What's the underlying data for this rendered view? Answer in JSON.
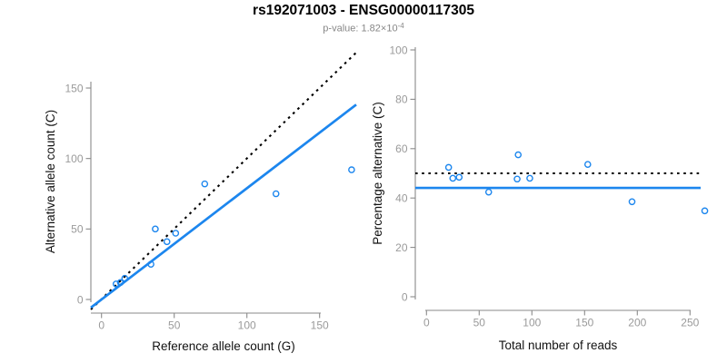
{
  "header": {
    "title": "rs192071003 - ENSG00000117305",
    "subtitle_prefix": "p-value: 1.82×10",
    "subtitle_exponent": "-4"
  },
  "colors": {
    "accent_blue": "#1C86EE",
    "reference_black": "#000000",
    "axis_gray": "#8a8a8a",
    "tick_label_gray": "#9a9a9a",
    "subtitle_gray": "#878787"
  },
  "chart_data": [
    {
      "type": "scatter",
      "xlabel": "Reference allele count (G)",
      "ylabel": "Alternative allele count (C)",
      "xlim": [
        0,
        172
      ],
      "ylim": [
        0,
        172
      ],
      "xticks": [
        0,
        50,
        100,
        150
      ],
      "yticks": [
        0,
        50,
        100,
        150
      ],
      "grid": false,
      "marker": "open-circle",
      "points": [
        [
          10,
          11
        ],
        [
          13,
          12
        ],
        [
          16,
          15
        ],
        [
          34,
          25
        ],
        [
          37,
          50
        ],
        [
          45,
          41
        ],
        [
          51,
          47
        ],
        [
          71,
          82
        ],
        [
          120,
          75
        ],
        [
          172,
          92
        ]
      ],
      "lines": [
        {
          "name": "identity-line",
          "style": "dotted",
          "color": "#000000",
          "slope": 1,
          "intercept": 0
        },
        {
          "name": "fit-line",
          "style": "solid",
          "color": "#1C86EE",
          "slope": 0.789,
          "intercept": 0
        }
      ]
    },
    {
      "type": "scatter",
      "xlabel": "Total number of reads",
      "ylabel": "Percentage alternative (C)",
      "xlim": [
        0,
        264
      ],
      "ylim": [
        0,
        100
      ],
      "xticks": [
        0,
        50,
        100,
        150,
        200,
        250
      ],
      "yticks": [
        0,
        20,
        40,
        60,
        80,
        100
      ],
      "grid": false,
      "marker": "open-circle",
      "points": [
        [
          21,
          52.4
        ],
        [
          25,
          48.0
        ],
        [
          31,
          48.4
        ],
        [
          59,
          42.4
        ],
        [
          87,
          57.5
        ],
        [
          86,
          47.7
        ],
        [
          98,
          48.0
        ],
        [
          153,
          53.6
        ],
        [
          195,
          38.5
        ],
        [
          264,
          34.8
        ]
      ],
      "lines": [
        {
          "name": "null-50-percent-line",
          "style": "dotted",
          "color": "#000000",
          "slope": 0,
          "intercept": 50
        },
        {
          "name": "mean-percentage-line",
          "style": "solid",
          "color": "#1C86EE",
          "slope": 0,
          "intercept": 44.1
        }
      ]
    }
  ]
}
